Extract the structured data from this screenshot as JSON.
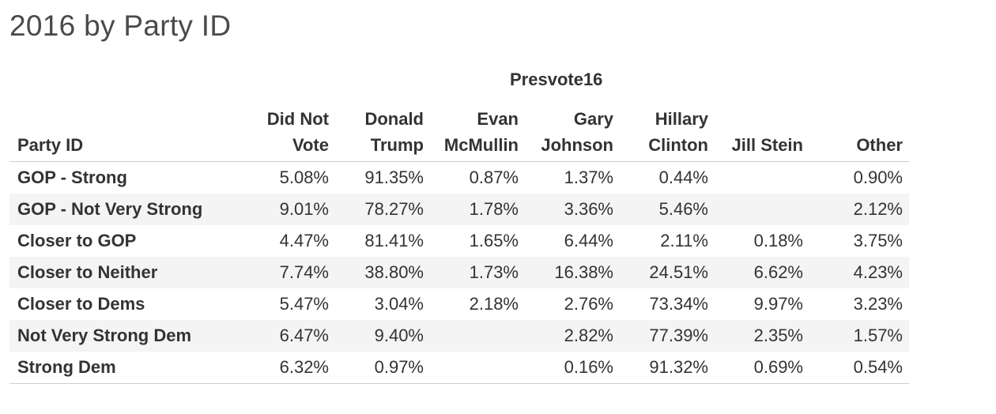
{
  "title": "2016 by Party ID",
  "chart_data": {
    "type": "table",
    "title": "2016 by Party ID",
    "column_group_label": "Presvote16",
    "row_header_label": "Party ID",
    "columns": [
      {
        "line1": "Did Not",
        "line2": "Vote"
      },
      {
        "line1": "Donald",
        "line2": "Trump"
      },
      {
        "line1": "Evan",
        "line2": "McMullin"
      },
      {
        "line1": "Gary",
        "line2": "Johnson"
      },
      {
        "line1": "Hillary",
        "line2": "Clinton"
      },
      {
        "line1": "",
        "line2": "Jill Stein"
      },
      {
        "line1": "",
        "line2": "Other"
      }
    ],
    "rows": [
      {
        "label": "GOP - Strong",
        "values": [
          "5.08%",
          "91.35%",
          "0.87%",
          "1.37%",
          "0.44%",
          "",
          "0.90%"
        ]
      },
      {
        "label": "GOP - Not Very Strong",
        "values": [
          "9.01%",
          "78.27%",
          "1.78%",
          "3.36%",
          "5.46%",
          "",
          "2.12%"
        ]
      },
      {
        "label": "Closer to GOP",
        "values": [
          "4.47%",
          "81.41%",
          "1.65%",
          "6.44%",
          "2.11%",
          "0.18%",
          "3.75%"
        ]
      },
      {
        "label": "Closer to Neither",
        "values": [
          "7.74%",
          "38.80%",
          "1.73%",
          "16.38%",
          "24.51%",
          "6.62%",
          "4.23%"
        ]
      },
      {
        "label": "Closer to Dems",
        "values": [
          "5.47%",
          "3.04%",
          "2.18%",
          "2.76%",
          "73.34%",
          "9.97%",
          "3.23%"
        ]
      },
      {
        "label": "Not Very Strong Dem",
        "values": [
          "6.47%",
          "9.40%",
          "",
          "2.82%",
          "77.39%",
          "2.35%",
          "1.57%"
        ]
      },
      {
        "label": "Strong Dem",
        "values": [
          "6.32%",
          "0.97%",
          "",
          "0.16%",
          "91.32%",
          "0.69%",
          "0.54%"
        ]
      }
    ]
  }
}
